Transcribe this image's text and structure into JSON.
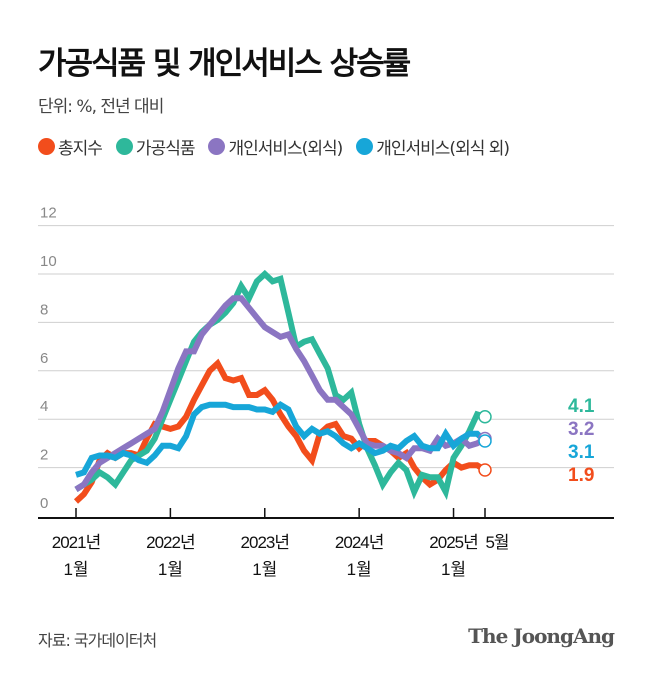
{
  "title": "가공식품 및 개인서비스 상승률",
  "subtitle": "단위: %, 전년 대비",
  "source": "자료: 국가데이터처",
  "logo": "The JoongAng",
  "chart_data": {
    "type": "line",
    "title": "가공식품 및 개인서비스 상승률",
    "ylabel": "",
    "xlabel": "",
    "ylim": [
      0,
      12
    ],
    "yticks": [
      "0",
      "2",
      "4",
      "6",
      "8",
      "10",
      "12"
    ],
    "grid": true,
    "legend": "top",
    "x_range": [
      "2021-01",
      "2025-05"
    ],
    "xticks": [
      {
        "line1": "2021년",
        "line2": "1월",
        "month": "2021-01"
      },
      {
        "line1": "2022년",
        "line2": "1월",
        "month": "2022-01"
      },
      {
        "line1": "2023년",
        "line2": "1월",
        "month": "2023-01"
      },
      {
        "line1": "2024년",
        "line2": "1월",
        "month": "2024-01"
      },
      {
        "line1": "2025년",
        "line2": "1월",
        "month": "2025-01"
      },
      {
        "line1": "5월",
        "line2": "",
        "month": "2025-05"
      }
    ],
    "series": [
      {
        "name": "총지수",
        "color": "#f24d1c",
        "end_label": "1.9",
        "values": [
          0.6,
          0.9,
          1.4,
          2.3,
          2.6,
          2.4,
          2.6,
          2.6,
          2.5,
          3.2,
          3.8,
          3.7,
          3.6,
          3.7,
          4.1,
          4.8,
          5.4,
          6.0,
          6.3,
          5.7,
          5.6,
          5.7,
          5.0,
          5.0,
          5.2,
          4.8,
          4.2,
          3.7,
          3.3,
          2.7,
          2.3,
          3.4,
          3.7,
          3.8,
          3.3,
          3.2,
          2.8,
          3.1,
          3.1,
          2.9,
          2.7,
          2.4,
          2.6,
          2.0,
          1.6,
          1.3,
          1.5,
          1.9,
          2.2,
          2.0,
          2.1,
          2.1,
          1.9
        ]
      },
      {
        "name": "가공식품",
        "color": "#2eb89b",
        "end_label": "4.1",
        "values": [
          1.1,
          1.3,
          1.5,
          1.8,
          1.6,
          1.3,
          1.8,
          2.3,
          2.5,
          2.7,
          3.2,
          4.0,
          4.8,
          5.6,
          6.4,
          7.2,
          7.6,
          7.9,
          8.1,
          8.4,
          8.8,
          9.5,
          9.0,
          9.7,
          10.0,
          9.7,
          9.8,
          8.4,
          7.0,
          7.2,
          7.3,
          6.7,
          6.1,
          5.0,
          4.8,
          5.1,
          3.8,
          2.8,
          2.1,
          1.3,
          1.8,
          2.2,
          1.9,
          1.0,
          1.7,
          1.6,
          1.6,
          1.0,
          2.4,
          2.9,
          3.5,
          4.2,
          4.1
        ]
      },
      {
        "name": "개인서비스(외식)",
        "color": "#8b75c2",
        "end_label": "3.2",
        "values": [
          1.1,
          1.3,
          1.8,
          2.2,
          2.4,
          2.6,
          2.8,
          3.0,
          3.2,
          3.4,
          3.6,
          4.3,
          5.2,
          6.1,
          6.8,
          6.8,
          7.5,
          7.9,
          8.3,
          8.7,
          9.0,
          9.0,
          8.6,
          8.2,
          7.8,
          7.6,
          7.4,
          7.5,
          6.9,
          6.4,
          5.8,
          5.2,
          4.8,
          4.8,
          4.5,
          4.2,
          3.6,
          3.0,
          2.9,
          2.9,
          2.7,
          2.6,
          2.4,
          2.8,
          2.8,
          2.7,
          3.2,
          2.9,
          3.0,
          3.2,
          2.9,
          3.0,
          3.2
        ]
      },
      {
        "name": "개인서비스(외식 외)",
        "color": "#17a6d8",
        "end_label": "3.1",
        "values": [
          1.7,
          1.8,
          2.4,
          2.5,
          2.5,
          2.4,
          2.6,
          2.5,
          2.3,
          2.2,
          2.5,
          2.9,
          2.9,
          2.8,
          3.3,
          4.2,
          4.5,
          4.6,
          4.6,
          4.6,
          4.5,
          4.5,
          4.5,
          4.4,
          4.4,
          4.3,
          4.6,
          4.4,
          3.7,
          3.3,
          3.6,
          3.4,
          3.5,
          3.3,
          3.0,
          2.8,
          3.0,
          2.8,
          2.6,
          2.7,
          2.9,
          2.8,
          3.1,
          3.3,
          2.9,
          2.8,
          2.8,
          3.4,
          2.9,
          3.2,
          3.4,
          3.4,
          3.1
        ]
      }
    ]
  }
}
